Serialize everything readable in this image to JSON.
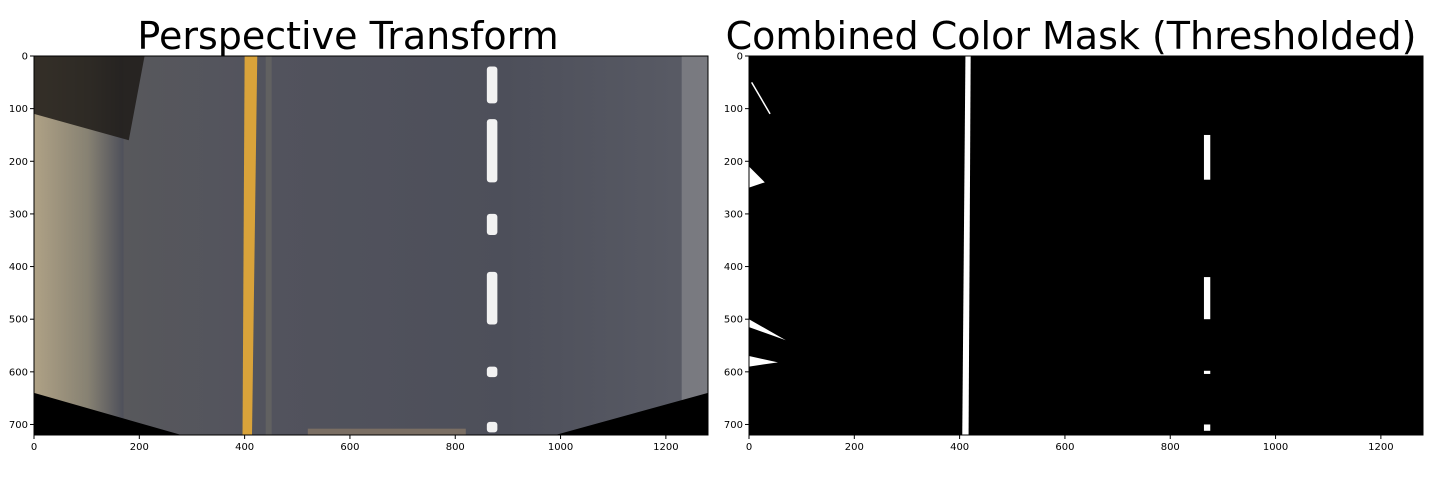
{
  "chart_data": [
    {
      "type": "image",
      "title": "Perspective Transform",
      "xlabel": "",
      "ylabel": "",
      "xlim": [
        0,
        1280
      ],
      "ylim": [
        720,
        0
      ],
      "xticks": [
        0,
        200,
        400,
        600,
        800,
        1000,
        1200
      ],
      "yticks": [
        0,
        100,
        200,
        300,
        400,
        500,
        600,
        700
      ],
      "colors": {
        "road": "#4d4f5a",
        "yellow_line": "#d9a33a",
        "white_line": "#f2f2f2",
        "shoulder": "#9c9078",
        "border": "#000000"
      },
      "features": {
        "yellow_line_x": 410,
        "white_dash_x": 870,
        "white_dash_segments_y": [
          [
            20,
            90
          ],
          [
            120,
            240
          ],
          [
            300,
            340
          ],
          [
            410,
            510
          ],
          [
            590,
            610
          ],
          [
            695,
            715
          ]
        ]
      }
    },
    {
      "type": "image",
      "title": "Combined Color Mask (Thresholded)",
      "xlabel": "",
      "ylabel": "",
      "xlim": [
        0,
        1280
      ],
      "ylim": [
        720,
        0
      ],
      "xticks": [
        0,
        200,
        400,
        600,
        800,
        1000,
        1200
      ],
      "yticks": [
        0,
        100,
        200,
        300,
        400,
        500,
        600,
        700
      ],
      "colors": {
        "background": "#000000",
        "mask": "#ffffff"
      },
      "features": {
        "left_line_x": 415,
        "right_segments": [
          [
            870,
            150,
            235
          ],
          [
            870,
            420,
            500
          ],
          [
            870,
            598,
            604
          ],
          [
            870,
            700,
            712
          ]
        ]
      }
    }
  ]
}
